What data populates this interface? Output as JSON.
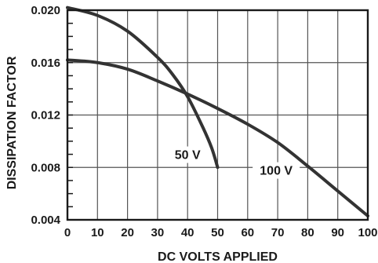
{
  "chart_data": {
    "type": "line",
    "title": "",
    "xlabel": "DC VOLTS APPLIED",
    "ylabel": "DISSIPATION FACTOR",
    "xlim": [
      0,
      100
    ],
    "ylim": [
      0.004,
      0.02
    ],
    "x_ticks": [
      "0",
      "10",
      "20",
      "30",
      "40",
      "50",
      "60",
      "70",
      "80",
      "90",
      "100"
    ],
    "y_ticks": [
      "0.004",
      "0.008",
      "0.012",
      "0.016",
      "0.020"
    ],
    "grid": true,
    "series": [
      {
        "name": "50 V",
        "x": [
          0,
          10,
          20,
          30,
          35,
          40,
          45,
          48,
          50
        ],
        "y": [
          0.0202,
          0.0196,
          0.0184,
          0.0164,
          0.0151,
          0.0134,
          0.0111,
          0.0095,
          0.008
        ]
      },
      {
        "name": "100 V",
        "x": [
          0,
          10,
          20,
          30,
          40,
          50,
          60,
          70,
          80,
          90,
          100
        ],
        "y": [
          0.0162,
          0.016,
          0.0155,
          0.0146,
          0.0136,
          0.0125,
          0.0113,
          0.0099,
          0.0081,
          0.0062,
          0.0043
        ]
      }
    ],
    "annotations": [
      {
        "text": "50 V",
        "series": "50 V"
      },
      {
        "text": "100 V",
        "series": "100 V"
      }
    ]
  }
}
